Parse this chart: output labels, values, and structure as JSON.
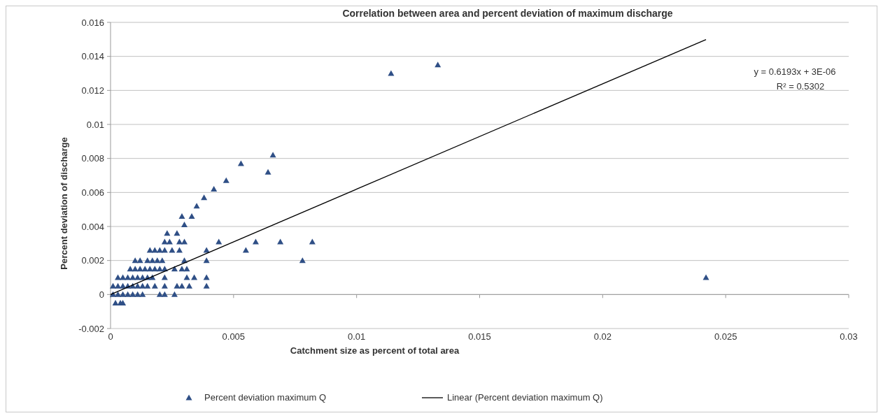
{
  "chart_data": {
    "type": "scatter",
    "title": "Correlation between area and percent deviation of maximum discharge",
    "xlabel": "Catchment size as percent of total area",
    "ylabel": "Percent deviation of discharge",
    "xlim": [
      0,
      0.03
    ],
    "xticks": [
      0,
      0.005,
      0.01,
      0.015,
      0.02,
      0.025,
      0.03
    ],
    "ylim": [
      -0.002,
      0.016
    ],
    "yticks": [
      -0.002,
      0,
      0.002,
      0.004,
      0.006,
      0.008,
      0.01,
      0.012,
      0.014,
      0.016
    ],
    "grid": "y",
    "legend": "bottom",
    "marker": "triangle",
    "annotations": [
      "y = 0.6193x + 3E-06",
      "R² = 0.5302"
    ],
    "series": [
      {
        "name": "Percent deviation maximum Q",
        "color": "#2f4f86",
        "x": [
          0.0066,
          0.0053,
          0.0064,
          0.0047,
          0.0042,
          0.0038,
          0.0035,
          0.0029,
          0.0033,
          0.003,
          0.0023,
          0.0027,
          0.0022,
          0.0024,
          0.0028,
          0.003,
          0.0044,
          0.0059,
          0.0069,
          0.0082,
          0.0016,
          0.0018,
          0.002,
          0.0022,
          0.0025,
          0.0028,
          0.0039,
          0.0055,
          0.001,
          0.0012,
          0.0015,
          0.0017,
          0.0019,
          0.0021,
          0.003,
          0.0039,
          0.0078,
          0.0008,
          0.001,
          0.0012,
          0.0014,
          0.0016,
          0.0018,
          0.002,
          0.0022,
          0.0026,
          0.0029,
          0.0031,
          0.0003,
          0.0005,
          0.0007,
          0.0009,
          0.0011,
          0.0013,
          0.0015,
          0.0017,
          0.0022,
          0.0031,
          0.0034,
          0.0039,
          0.0242,
          0.0001,
          0.0003,
          0.0005,
          0.0007,
          0.0009,
          0.0011,
          0.0013,
          0.0015,
          0.0018,
          0.0022,
          0.0027,
          0.0029,
          0.0032,
          0.0039,
          0.0001,
          0.0003,
          0.0005,
          0.0007,
          0.0009,
          0.0011,
          0.0013,
          0.002,
          0.0022,
          0.0026,
          0.0002,
          0.0004,
          0.0005,
          0.0114,
          0.0133
        ],
        "values": [
          0.0082,
          0.0077,
          0.0072,
          0.0067,
          0.0062,
          0.0057,
          0.0052,
          0.0046,
          0.0046,
          0.0041,
          0.0036,
          0.0036,
          0.0031,
          0.0031,
          0.0031,
          0.0031,
          0.0031,
          0.0031,
          0.0031,
          0.0031,
          0.0026,
          0.0026,
          0.0026,
          0.0026,
          0.0026,
          0.0026,
          0.0026,
          0.0026,
          0.002,
          0.002,
          0.002,
          0.002,
          0.002,
          0.002,
          0.002,
          0.002,
          0.002,
          0.0015,
          0.0015,
          0.0015,
          0.0015,
          0.0015,
          0.0015,
          0.0015,
          0.0015,
          0.0015,
          0.0015,
          0.0015,
          0.001,
          0.001,
          0.001,
          0.001,
          0.001,
          0.001,
          0.001,
          0.001,
          0.001,
          0.001,
          0.001,
          0.001,
          0.001,
          0.0005,
          0.0005,
          0.0005,
          0.0005,
          0.0005,
          0.0005,
          0.0005,
          0.0005,
          0.0005,
          0.0005,
          0.0005,
          0.0005,
          0.0005,
          0.0005,
          0,
          0,
          0,
          0,
          0,
          0,
          0,
          0,
          0,
          0,
          -0.0005,
          -0.0005,
          -0.0005,
          0.013,
          0.0135
        ]
      },
      {
        "name": "Linear (Percent deviation maximum Q)",
        "type": "line",
        "color": "#000000",
        "marker": "none",
        "x": [
          0,
          0.0242
        ],
        "values": [
          0,
          0.01499
        ]
      }
    ]
  }
}
